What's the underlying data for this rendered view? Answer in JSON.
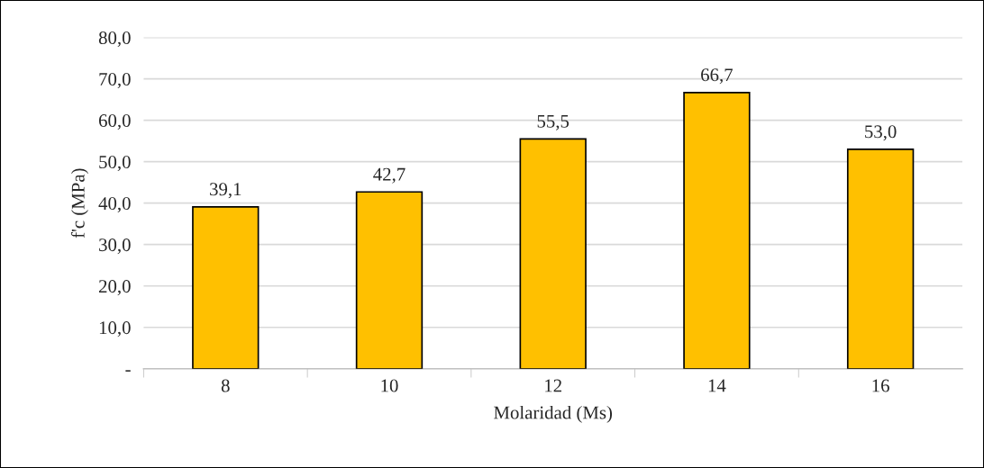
{
  "chart_data": {
    "type": "bar",
    "xlabel": "Molaridad (Ms)",
    "ylabel": "f'c (MPa)",
    "categories": [
      "8",
      "10",
      "12",
      "14",
      "16"
    ],
    "values": [
      39.1,
      42.7,
      55.5,
      66.7,
      53.0
    ],
    "value_labels": [
      "39,1",
      "42,7",
      "55,5",
      "66,7",
      "53,0"
    ],
    "color": "#ffc000",
    "ylim": [
      0,
      80
    ],
    "yticks": [
      {
        "value": 0,
        "label": "-"
      },
      {
        "value": 10,
        "label": "10,0"
      },
      {
        "value": 20,
        "label": "20,0"
      },
      {
        "value": 30,
        "label": "30,0"
      },
      {
        "value": 40,
        "label": "40,0"
      },
      {
        "value": 50,
        "label": "50,0"
      },
      {
        "value": 60,
        "label": "60,0"
      },
      {
        "value": 70,
        "label": "70,0"
      },
      {
        "value": 80,
        "label": "80,0"
      }
    ],
    "grid": "y",
    "legend": false
  }
}
